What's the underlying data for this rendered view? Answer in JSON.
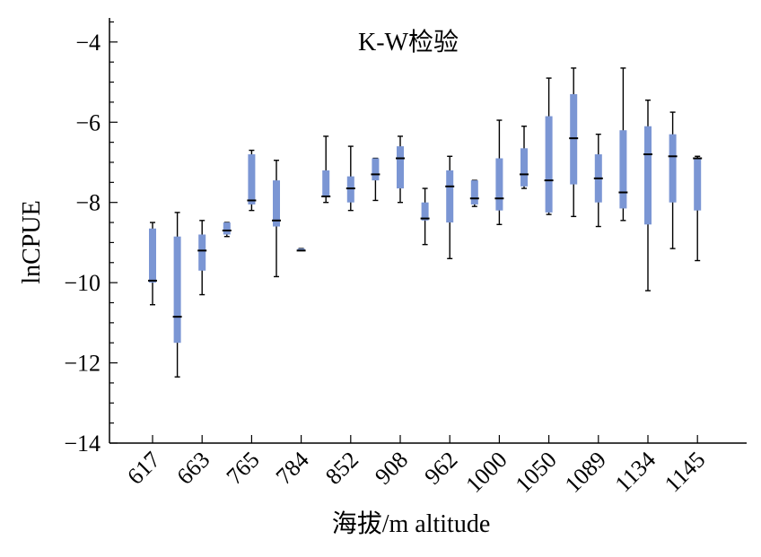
{
  "chart_data": {
    "type": "box",
    "title": "K-W检验",
    "xlabel": "海拔/m altitude",
    "ylabel": "lnCPUE",
    "ylim": [
      -14,
      -3.4
    ],
    "yticks": [
      -14,
      -12,
      -10,
      -8,
      -6,
      -4
    ],
    "ytick_labels": [
      "−14",
      "−12",
      "−10",
      "−8",
      "−6",
      "−4"
    ],
    "xtick_labels": [
      "617",
      "663",
      "765",
      "784",
      "852",
      "908",
      "962",
      "1000",
      "1050",
      "1089",
      "1134",
      "1145"
    ],
    "box_color": "#7b96d4",
    "boxes": [
      {
        "min": -10.55,
        "q1": -10.0,
        "median": -9.95,
        "q3": -8.65,
        "max": -8.5
      },
      {
        "min": -12.35,
        "q1": -11.5,
        "median": -10.85,
        "q3": -8.85,
        "max": -8.25
      },
      {
        "min": -10.3,
        "q1": -9.7,
        "median": -9.2,
        "q3": -8.8,
        "max": -8.45
      },
      {
        "min": -8.85,
        "q1": -8.8,
        "median": -8.7,
        "q3": -8.5,
        "max": -8.5
      },
      {
        "min": -8.2,
        "q1": -8.05,
        "median": -7.95,
        "q3": -6.8,
        "max": -6.7
      },
      {
        "min": -9.85,
        "q1": -8.6,
        "median": -8.45,
        "q3": -7.45,
        "max": -6.95
      },
      {
        "min": -9.2,
        "q1": -9.2,
        "median": -9.2,
        "q3": -9.15,
        "max": -9.15
      },
      {
        "min": -8.0,
        "q1": -7.85,
        "median": -7.85,
        "q3": -7.2,
        "max": -6.35
      },
      {
        "min": -8.2,
        "q1": -8.0,
        "median": -7.65,
        "q3": -7.35,
        "max": -6.6
      },
      {
        "min": -7.95,
        "q1": -7.45,
        "median": -7.3,
        "q3": -6.9,
        "max": -6.9
      },
      {
        "min": -8.0,
        "q1": -7.65,
        "median": -6.9,
        "q3": -6.6,
        "max": -6.35
      },
      {
        "min": -9.05,
        "q1": -8.45,
        "median": -8.4,
        "q3": -8.0,
        "max": -7.65
      },
      {
        "min": -9.4,
        "q1": -8.5,
        "median": -7.6,
        "q3": -7.2,
        "max": -6.85
      },
      {
        "min": -8.1,
        "q1": -8.05,
        "median": -7.9,
        "q3": -7.45,
        "max": -7.45
      },
      {
        "min": -8.55,
        "q1": -8.2,
        "median": -7.9,
        "q3": -6.9,
        "max": -5.95
      },
      {
        "min": -7.65,
        "q1": -7.6,
        "median": -7.3,
        "q3": -6.65,
        "max": -6.1
      },
      {
        "min": -8.3,
        "q1": -8.25,
        "median": -7.45,
        "q3": -5.85,
        "max": -4.9
      },
      {
        "min": -8.35,
        "q1": -7.55,
        "median": -6.4,
        "q3": -5.3,
        "max": -4.65
      },
      {
        "min": -8.6,
        "q1": -8.0,
        "median": -7.4,
        "q3": -6.8,
        "max": -6.3
      },
      {
        "min": -8.45,
        "q1": -8.15,
        "median": -7.75,
        "q3": -6.2,
        "max": -4.65
      },
      {
        "min": -10.2,
        "q1": -8.55,
        "median": -6.8,
        "q3": -6.1,
        "max": -5.45
      },
      {
        "min": -9.15,
        "q1": -8.0,
        "median": -6.85,
        "q3": -6.3,
        "max": -5.75
      },
      {
        "min": -9.45,
        "q1": -8.2,
        "median": -6.9,
        "q3": -6.9,
        "max": -6.85
      }
    ]
  }
}
